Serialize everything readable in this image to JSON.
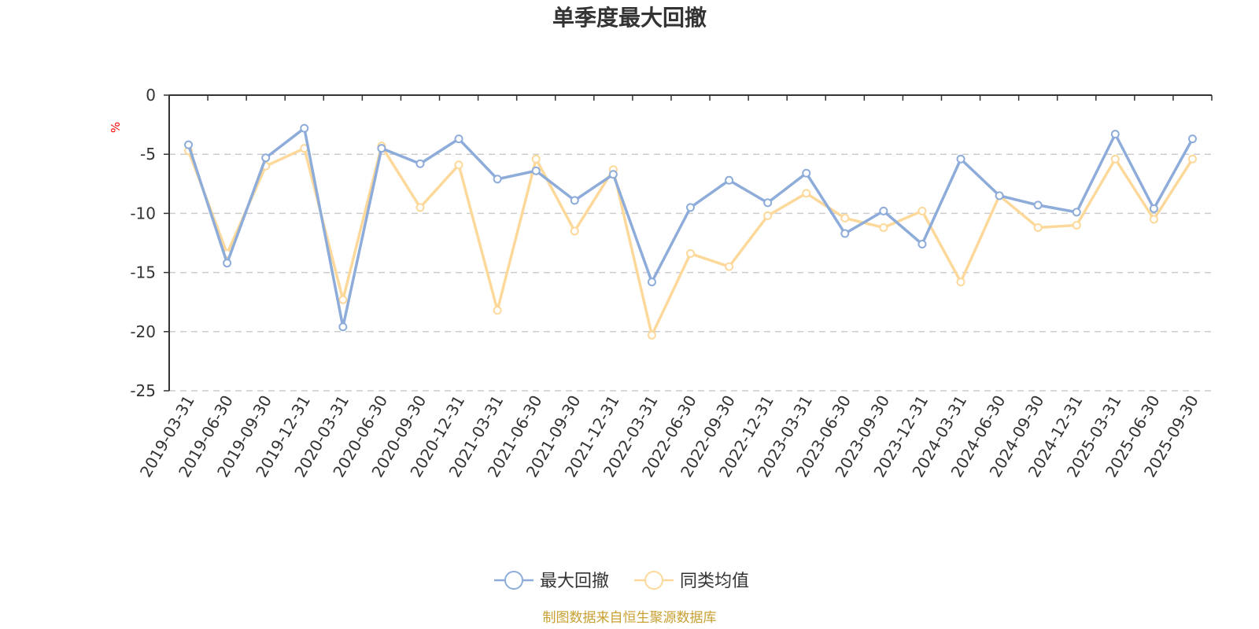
{
  "chart_data": {
    "type": "line",
    "title": "单季度最大回撤",
    "ylabel": "%",
    "ylim": [
      -25,
      0
    ],
    "yticks": [
      0,
      -5,
      -10,
      -15,
      -20,
      -25
    ],
    "grid": true,
    "legend_position": "bottom",
    "categories": [
      "2019-03-31",
      "2019-06-30",
      "2019-09-30",
      "2019-12-31",
      "2020-03-31",
      "2020-06-30",
      "2020-09-30",
      "2020-12-31",
      "2021-03-31",
      "2021-06-30",
      "2021-09-30",
      "2021-12-31",
      "2022-03-31",
      "2022-06-30",
      "2022-09-30",
      "2022-12-31",
      "2023-03-31",
      "2023-06-30",
      "2023-09-30",
      "2023-12-31",
      "2024-03-31",
      "2024-06-30",
      "2024-09-30",
      "2024-12-31",
      "2025-03-31",
      "2025-06-30",
      "2025-09-30"
    ],
    "series": [
      {
        "name": "最大回撤",
        "color": "#8eacd9",
        "values": [
          -4.2,
          -14.2,
          -5.3,
          -2.8,
          -19.6,
          -4.5,
          -5.8,
          -3.7,
          -7.1,
          -6.4,
          -8.9,
          -6.7,
          -15.8,
          -9.5,
          -7.2,
          -9.1,
          -6.6,
          -11.7,
          -9.8,
          -12.6,
          -5.4,
          -8.5,
          -9.3,
          -9.9,
          -3.3,
          -9.6,
          -3.7
        ]
      },
      {
        "name": "同类均值",
        "color": "#fcd99a",
        "values": [
          -4.7,
          -13.4,
          -6.0,
          -4.5,
          -17.3,
          -4.3,
          -9.5,
          -5.9,
          -18.2,
          -5.4,
          -11.5,
          -6.3,
          -20.3,
          -13.4,
          -14.5,
          -10.2,
          -8.3,
          -10.4,
          -11.2,
          -9.8,
          -15.8,
          -8.5,
          -11.2,
          -11.0,
          -5.4,
          -10.5,
          -5.4
        ]
      }
    ]
  },
  "source": "制图数据来自恒生聚源数据库"
}
